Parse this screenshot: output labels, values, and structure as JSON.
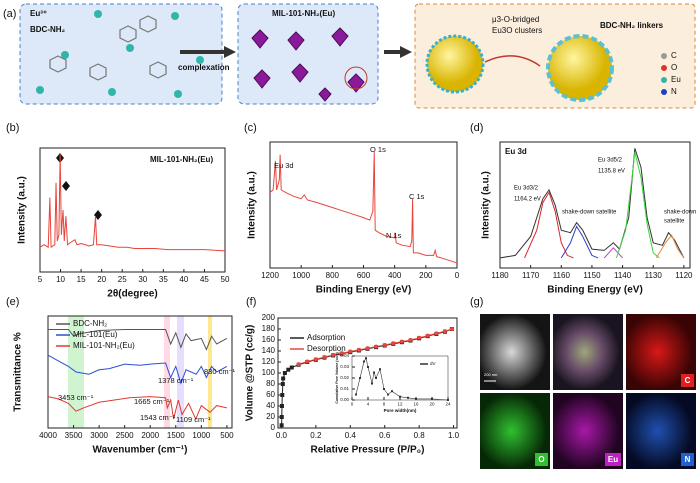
{
  "panel_a": {
    "label": "(a)",
    "ion": "Eu³⁺",
    "linker": "BDC-NH₂",
    "arrow": "complexation",
    "product": "MIL-101-NH₂(Eu)",
    "cluster": [
      "μ3-O-bridged",
      "Eu3O clusters"
    ],
    "linker_label": "BDC-NH₂ linkers",
    "elements": [
      "C",
      "O",
      "Eu",
      "N"
    ]
  },
  "panel_labels": [
    "(b)",
    "(c)",
    "(d)",
    "(e)",
    "(f)",
    "(g)"
  ],
  "chart_data": [
    {
      "type": "line",
      "title": "MIL-101-NH₂(Eu)",
      "x_label": "2θ(degree)",
      "y_label": "Intensity (a.u.)",
      "x": [
        5,
        6,
        7,
        7.4,
        7.7,
        8.6,
        8.9,
        9.2,
        9.6,
        9.9,
        10.2,
        10.6,
        10.9,
        11.3,
        11.7,
        12.5,
        13.5,
        14,
        15,
        16,
        17,
        18,
        18.5,
        18.8,
        20,
        22,
        24,
        26,
        28,
        30,
        33,
        36,
        40,
        45,
        50
      ],
      "series": [
        {
          "color": "#e8453c",
          "values": [
            20,
            22,
            20,
            60,
            20,
            22,
            72,
            25,
            30,
            95,
            30,
            50,
            25,
            45,
            22,
            24,
            26,
            22,
            23,
            22,
            21,
            22,
            45,
            22,
            22,
            21,
            20,
            20,
            19,
            19,
            19,
            18,
            18,
            18,
            17
          ]
        }
      ],
      "xlim": [
        5,
        50
      ],
      "xticks": [
        5,
        10,
        15,
        20,
        25,
        30,
        35,
        40,
        45,
        50
      ],
      "ylim": [
        0,
        100
      ]
    },
    {
      "type": "line",
      "x_label": "Binding Energy (eV)",
      "y_label": "Intensity (a.u.)",
      "annotations": [
        "Eu 3d",
        "O 1s",
        "N 1s",
        "C 1s"
      ],
      "x": [
        1200,
        1180,
        1165,
        1158,
        1140,
        1135,
        1128,
        1100,
        1050,
        1000,
        980,
        960,
        900,
        850,
        800,
        750,
        700,
        650,
        600,
        560,
        540,
        531,
        525,
        500,
        450,
        400,
        398,
        390,
        350,
        300,
        290,
        285,
        280,
        250,
        200,
        150,
        140,
        130,
        100,
        50,
        0
      ],
      "series": [
        {
          "color": "#e8453c",
          "values": [
            60,
            62,
            85,
            62,
            70,
            90,
            62,
            60,
            57,
            55,
            58,
            54,
            52,
            50,
            48,
            46,
            44,
            42,
            40,
            38,
            45,
            92,
            30,
            28,
            25,
            24,
            28,
            20,
            18,
            17,
            22,
            55,
            12,
            12,
            10,
            10,
            14,
            9,
            8,
            6,
            4
          ]
        }
      ],
      "xlim": [
        1200,
        0
      ],
      "xticks": [
        1200,
        1000,
        800,
        600,
        400,
        200,
        0
      ],
      "ylim": [
        0,
        100
      ]
    },
    {
      "type": "line",
      "title": "Eu 3d",
      "x_label": "Binding Energy (eV)",
      "y_label": "Intensity (a.u.)",
      "annotations": [
        "Eu 3d3/2",
        "1164.2 eV",
        "Eu 3d5/2",
        "1135.8 eV",
        "shake-down satellite",
        "shake-down",
        "satellite"
      ],
      "series": [
        {
          "color": "#333333",
          "x": [
            1180,
            1175,
            1170,
            1166,
            1164,
            1162,
            1160,
            1157,
            1155,
            1153,
            1150,
            1146,
            1143,
            1141,
            1138,
            1136,
            1134,
            1132,
            1130,
            1127,
            1125,
            1123,
            1120
          ],
          "values": [
            8,
            10,
            25,
            55,
            62,
            50,
            30,
            28,
            36,
            30,
            15,
            14,
            20,
            15,
            40,
            95,
            80,
            40,
            20,
            18,
            28,
            22,
            8
          ]
        },
        {
          "color": "#d9262b",
          "x": [
            1172,
            1168,
            1166,
            1164,
            1162,
            1160,
            1158,
            1156
          ],
          "values": [
            8,
            30,
            52,
            60,
            45,
            20,
            10,
            8
          ]
        },
        {
          "color": "#2c3fc4",
          "x": [
            1160,
            1157,
            1155,
            1153,
            1150,
            1148
          ],
          "values": [
            8,
            20,
            33,
            25,
            10,
            8
          ]
        },
        {
          "color": "#c23bd6",
          "x": [
            1146,
            1143,
            1140
          ],
          "values": [
            8,
            16,
            8
          ]
        },
        {
          "color": "#3dd43d",
          "x": [
            1142,
            1139,
            1137,
            1136,
            1134,
            1132,
            1130,
            1128
          ],
          "values": [
            8,
            30,
            70,
            92,
            72,
            35,
            12,
            8
          ]
        },
        {
          "color": "#e08a3c",
          "x": [
            1129,
            1126,
            1124,
            1122,
            1120
          ],
          "values": [
            8,
            20,
            26,
            15,
            8
          ]
        }
      ],
      "xlim": [
        1180,
        1118
      ],
      "xticks": [
        1180,
        1170,
        1160,
        1150,
        1140,
        1130,
        1120
      ],
      "ylim": [
        0,
        100
      ]
    },
    {
      "type": "line",
      "x_label": "Wavenumber (cm⁻¹)",
      "y_label": "Transmittance %",
      "annotations": [
        "3453 cm⁻¹",
        "1665 cm⁻¹",
        "1543 cm⁻¹",
        "1378 cm⁻¹",
        "1109 cm⁻¹",
        "830 cm⁻¹"
      ],
      "series": [
        {
          "name": "BDC-NH₂",
          "color": "#555555",
          "x": [
            4000,
            3600,
            3500,
            3400,
            3000,
            2500,
            2000,
            1700,
            1600,
            1500,
            1400,
            1300,
            1200,
            1000,
            900,
            800,
            700,
            500
          ],
          "values": [
            88,
            88,
            82,
            84,
            87,
            88,
            88,
            88,
            75,
            85,
            72,
            84,
            78,
            80,
            70,
            82,
            75,
            80
          ]
        },
        {
          "name": "MIL-101(Eu)",
          "color": "#2a4fd6",
          "x": [
            4000,
            3800,
            3600,
            3450,
            3200,
            3000,
            2800,
            2500,
            2200,
            2000,
            1700,
            1600,
            1500,
            1400,
            1300,
            1100,
            1000,
            900,
            800,
            700,
            500
          ],
          "values": [
            65,
            60,
            55,
            50,
            48,
            52,
            53,
            57,
            56,
            57,
            58,
            45,
            55,
            40,
            52,
            48,
            55,
            45,
            55,
            50,
            55
          ]
        },
        {
          "name": "MIL-101-NH₂(Eu)",
          "color": "#e03a2f",
          "x": [
            4000,
            3800,
            3600,
            3453,
            3300,
            3000,
            2700,
            2400,
            2000,
            1700,
            1665,
            1600,
            1543,
            1450,
            1378,
            1250,
            1109,
            1000,
            830,
            700,
            500
          ],
          "values": [
            28,
            26,
            22,
            15,
            18,
            23,
            25,
            27,
            28,
            27,
            18,
            25,
            8,
            25,
            12,
            22,
            8,
            20,
            14,
            20,
            18
          ]
        }
      ],
      "xlim": [
        4000,
        400
      ],
      "xticks": [
        4000,
        3500,
        3000,
        2500,
        2000,
        1500,
        1000,
        500
      ],
      "ylim": [
        0,
        100
      ]
    },
    {
      "type": "line",
      "x_label": "Relative Pressure (P/P₀)",
      "y_label": "Volume @STP (cc/g)",
      "x": [
        0.001,
        0.002,
        0.003,
        0.005,
        0.008,
        0.01,
        0.02,
        0.04,
        0.06,
        0.1,
        0.15,
        0.2,
        0.25,
        0.3,
        0.35,
        0.4,
        0.45,
        0.5,
        0.55,
        0.6,
        0.65,
        0.7,
        0.75,
        0.8,
        0.85,
        0.9,
        0.95,
        0.99
      ],
      "series": [
        {
          "name": "Adsorption",
          "color": "#222222",
          "marker": "square",
          "values": [
            5,
            20,
            40,
            60,
            80,
            90,
            100,
            106,
            110,
            115,
            120,
            124,
            128,
            132,
            135,
            138,
            141,
            144,
            147,
            150,
            153,
            156,
            159,
            163,
            167,
            171,
            175,
            180
          ]
        },
        {
          "name": "Desorption",
          "color": "#e8453c",
          "marker": "circle",
          "values": [
            null,
            null,
            null,
            null,
            null,
            null,
            null,
            null,
            null,
            116,
            121,
            125,
            129,
            133,
            136,
            139,
            142,
            145,
            148,
            151,
            154,
            157,
            160,
            164,
            168,
            172,
            176,
            180
          ]
        }
      ],
      "xlim": [
        -0.02,
        1.02
      ],
      "xticks": [
        {
          "value": 0,
          "label": "0.0"
        },
        0.2,
        0.4,
        0.6,
        0.8,
        {
          "value": 1,
          "label": "1.0"
        }
      ],
      "ylim": [
        0,
        200
      ],
      "yticks": [
        0,
        20,
        40,
        60,
        80,
        100,
        120,
        140,
        160,
        180,
        200
      ]
    },
    {
      "type": "line",
      "inset": true,
      "x_label": "Pore width(nm)",
      "y_label": "Cumulative Pore Volume (cc/g)",
      "x": [
        1,
        2,
        3,
        3.5,
        4,
        5,
        5.5,
        6,
        7,
        8,
        9,
        10,
        12,
        14,
        16,
        20,
        24
      ],
      "series": [
        {
          "name": "dV",
          "color": "#333333",
          "marker": "square",
          "values": [
            0.005,
            0.02,
            0.035,
            0.038,
            0.03,
            0.015,
            0.025,
            0.02,
            0.028,
            0.01,
            0.005,
            0.008,
            0.003,
            0.002,
            0.001,
            0.001,
            0
          ]
        }
      ],
      "xlim": [
        0,
        24
      ],
      "xticks": [
        0,
        4,
        8,
        12,
        16,
        20,
        24
      ],
      "ylim": [
        0,
        0.04
      ],
      "yticks": [
        {
          "value": 0,
          "label": "0.00"
        },
        0.01,
        0.02,
        0.03,
        {
          "value": 0.04,
          "label": "0.04"
        }
      ]
    }
  ],
  "panel_g": {
    "scale_bar": "200 nm",
    "maps": [
      "C",
      "O",
      "Eu",
      "N"
    ]
  }
}
